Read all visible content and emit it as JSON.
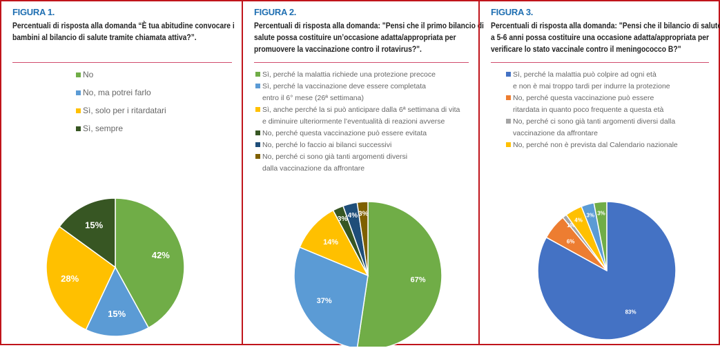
{
  "chart_data": [
    {
      "type": "pie",
      "figure": "FIGURA 1.",
      "title": "Percentuali di risposta alla domanda “È tua abitudine convocare i bambini al bilancio di salute tramite chiamata attiva?”.",
      "slices": [
        {
          "lines": [
            "No"
          ],
          "value": 42,
          "label": "42%",
          "color": "#70ad47"
        },
        {
          "lines": [
            "No, ma potrei farlo"
          ],
          "value": 15,
          "label": "15%",
          "color": "#5b9bd5"
        },
        {
          "lines": [
            "Sì, solo per i ritardatari"
          ],
          "value": 28,
          "label": "28%",
          "color": "#ffc000"
        },
        {
          "lines": [
            "Sì, sempre"
          ],
          "value": 15,
          "label": "15%",
          "color": "#375623"
        }
      ]
    },
    {
      "type": "pie",
      "figure": "FIGURA 2.",
      "title": "Percentuali di risposta alla domanda: \"Pensi che il primo bilancio di salute possa costituire un’occasione adatta/appropriata per promuovere la vaccinazione contro il rotavirus?\".",
      "slices": [
        {
          "lines": [
            "Sì, perché la malattia richiede una protezione precoce"
          ],
          "value": 67,
          "label": "67%",
          "color": "#70ad47"
        },
        {
          "lines": [
            "Sì, perché la vaccinazione deve essere completata",
            "entro il 6° mese (26ª settimana)"
          ],
          "value": 37,
          "label": "37%",
          "color": "#5b9bd5"
        },
        {
          "lines": [
            "Sì, anche perché la si può anticipare dalla 6ª settimana di vita",
            "e diminuire ulteriormente l’eventualità di reazioni avverse"
          ],
          "value": 14,
          "label": "14%",
          "color": "#ffc000"
        },
        {
          "lines": [
            "No, perché questa vaccinazione può essere evitata"
          ],
          "value": 3,
          "label": "3%",
          "color": "#375623"
        },
        {
          "lines": [
            "No, perché lo faccio ai bilanci successivi"
          ],
          "value": 4,
          "label": "4%",
          "color": "#1f4e79"
        },
        {
          "lines": [
            "No, perché ci sono già tanti argomenti diversi",
            "dalla vaccinazione da affrontare"
          ],
          "value": 3,
          "label": "3%",
          "color": "#7f6000"
        }
      ]
    },
    {
      "type": "pie",
      "figure": "FIGURA 3.",
      "title": "Percentuali di risposta alla domanda: \"Pensi che il bilancio di salute a 5-6 anni possa costituire una occasione adatta/appropriata per verificare lo stato vaccinale contro il meningococco B?\"",
      "slices": [
        {
          "lines": [
            "Sì, perché la malattia può colpire ad ogni età",
            "e non è mai troppo tardi per indurre la protezione"
          ],
          "value": 83,
          "label": "83%",
          "color": "#4472c4"
        },
        {
          "lines": [
            "No, perché questa vaccinazione può essere",
            "ritardata in quanto poco frequente a questa età"
          ],
          "value": 6,
          "label": "6%",
          "color": "#ed7d31"
        },
        {
          "lines": [
            "No, perché ci sono già tanti argomenti diversi dalla",
            "vaccinazione da affrontare"
          ],
          "value": 1,
          "label": "1%",
          "color": "#a5a5a5"
        },
        {
          "lines": [
            "No, perché non è prevista dal Calendario nazionale"
          ],
          "value": 4,
          "label": "4%",
          "color": "#ffc000"
        },
        {
          "value": 3,
          "label": "3%",
          "color": "#5b9bd5"
        },
        {
          "value": 3,
          "label": "3%",
          "color": "#70ad47"
        }
      ]
    }
  ]
}
